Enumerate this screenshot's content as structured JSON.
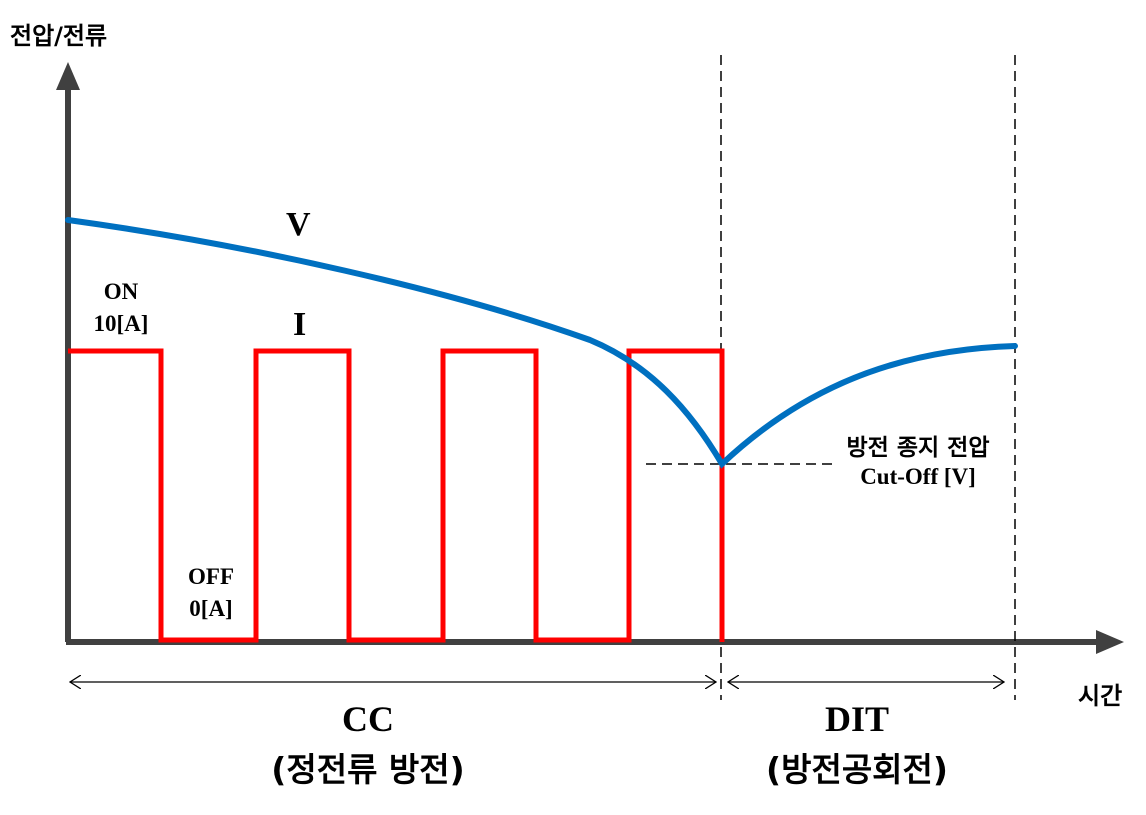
{
  "axes": {
    "y_label": "전압/전류",
    "x_label": "시간"
  },
  "curves": {
    "voltage_label": "V",
    "current_label": "I",
    "voltage_color": "#0070C0",
    "current_color": "#FF0000"
  },
  "current_levels": {
    "on_line1": "ON",
    "on_line2": "10[A]",
    "off_line1": "OFF",
    "off_line2": "0[A]"
  },
  "cutoff": {
    "line1": "방전 종지 전압",
    "line2": "Cut-Off [V]"
  },
  "phases": {
    "cc_title": "CC",
    "cc_subtitle": "(정전류 방전)",
    "dit_title": "DIT",
    "dit_subtitle": "(방전공회전)"
  }
}
